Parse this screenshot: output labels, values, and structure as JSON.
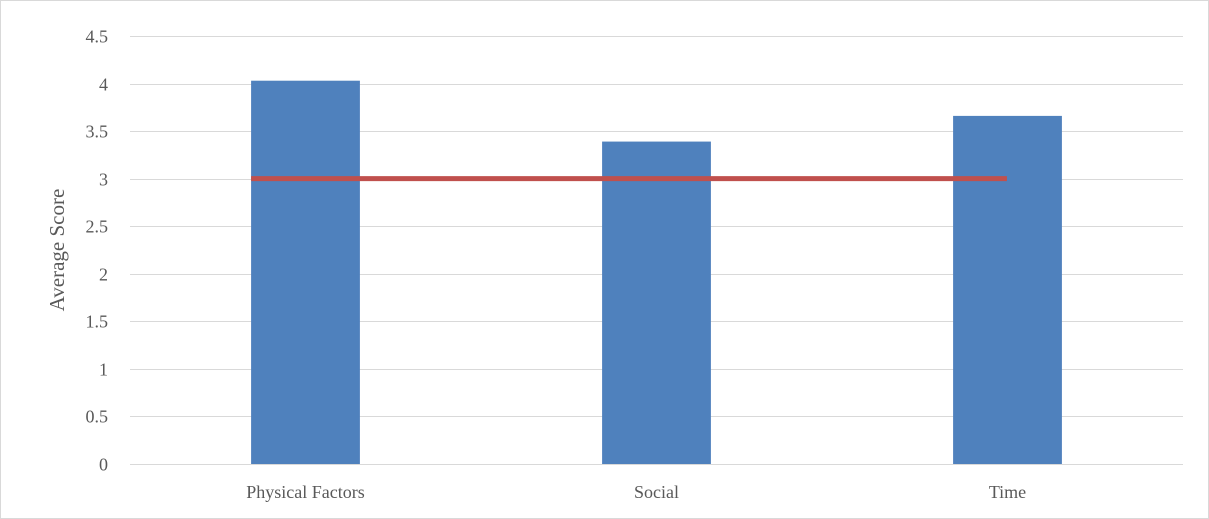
{
  "chart_data": {
    "type": "bar",
    "title": "",
    "xlabel": "",
    "ylabel": "Average Score",
    "categories": [
      "Physical Factors",
      "Social",
      "Time"
    ],
    "values": [
      4.03,
      3.39,
      3.66
    ],
    "ylim": [
      0,
      4.5
    ],
    "yticks": [
      0,
      0.5,
      1,
      1.5,
      2,
      2.5,
      3,
      3.5,
      4,
      4.5
    ],
    "ytick_labels": [
      "0",
      "0.5",
      "1",
      "1.5",
      "2",
      "2.5",
      "3",
      "3.5",
      "4",
      "4.5"
    ],
    "reference_line": {
      "value": 3,
      "from_category": 0,
      "to_category": 2
    },
    "grid": true,
    "legend": "none",
    "colors": {
      "bar": "#4f81bd",
      "reference_line": "#c0504d",
      "grid": "#d9d9d9",
      "axis": "#d9d9d9",
      "text": "#595959"
    }
  }
}
